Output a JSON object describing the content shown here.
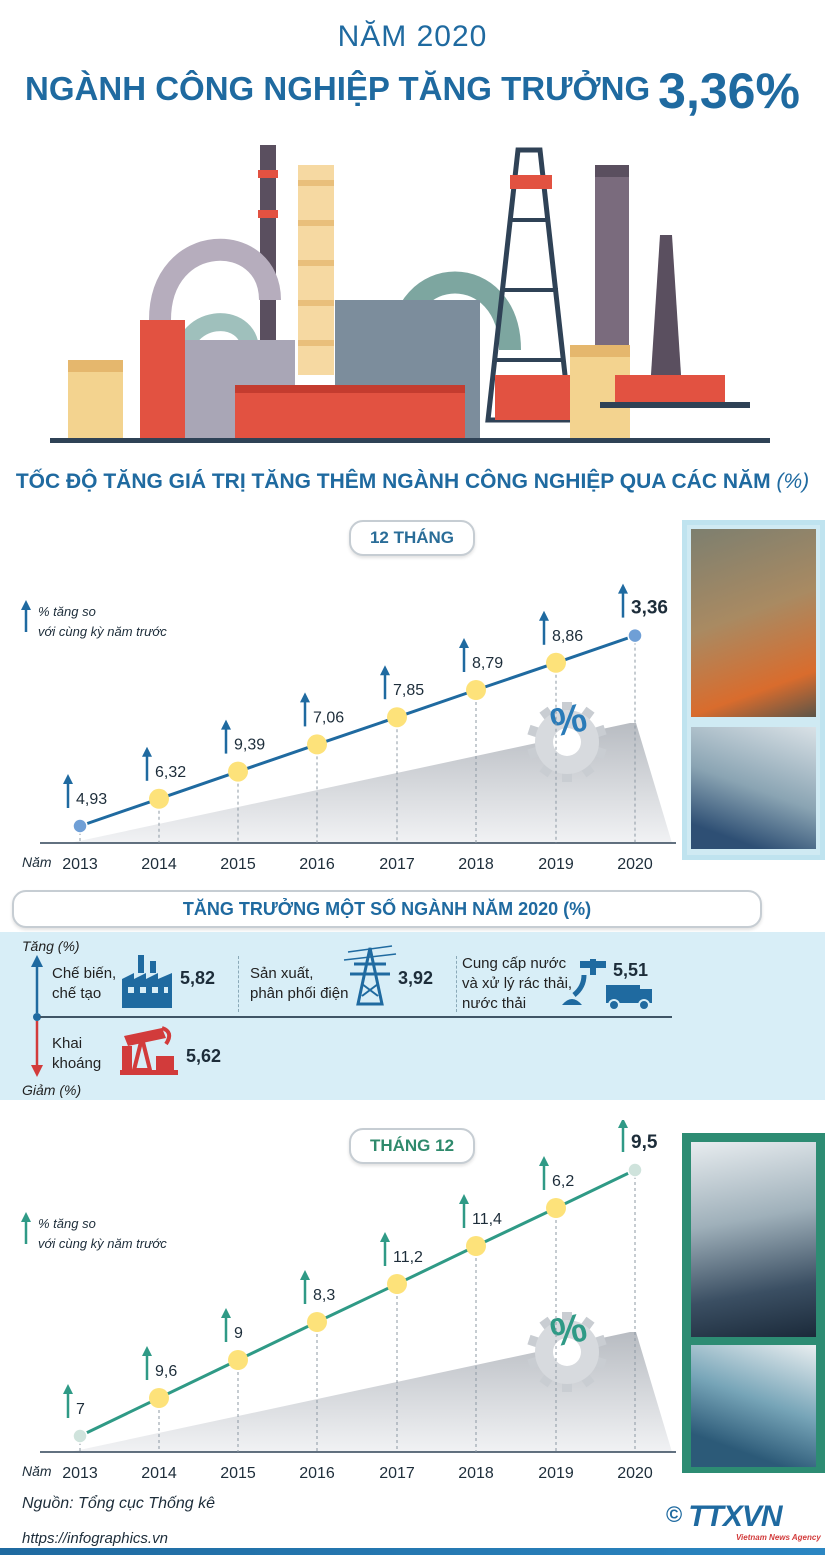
{
  "header": {
    "year_line": "NĂM 2020",
    "title_text": "NGÀNH CÔNG NGHIỆP TĂNG TRƯỞNG",
    "title_value": "3,36%"
  },
  "subtitle": {
    "text": "TỐC ĐỘ TĂNG GIÁ TRỊ TĂNG THÊM NGÀNH CÔNG NGHIỆP QUA CÁC NĂM",
    "unit": "(%)"
  },
  "chart_data": [
    {
      "type": "line",
      "title": "12 THÁNG",
      "legend": "% tăng so với cùng kỳ năm trước",
      "x_prefix": "Năm",
      "x": [
        "2013",
        "2014",
        "2015",
        "2016",
        "2017",
        "2018",
        "2019",
        "2020"
      ],
      "values": [
        4.93,
        6.32,
        9.39,
        7.06,
        7.85,
        8.79,
        8.86,
        3.36
      ],
      "labels": [
        "4,93",
        "6,32",
        "9,39",
        "7,06",
        "7,85",
        "8,79",
        "8,86",
        "3,36"
      ],
      "colors": {
        "line": "#1f6aa0",
        "marker": "#fde27a",
        "end_marker": "#6f9fd6",
        "arrow": "#1f6aa0"
      }
    },
    {
      "type": "line",
      "title": "THÁNG 12",
      "legend": "% tăng so với cùng kỳ năm trước",
      "x_prefix": "Năm",
      "x": [
        "2013",
        "2014",
        "2015",
        "2016",
        "2017",
        "2018",
        "2019",
        "2020"
      ],
      "values": [
        7,
        9.6,
        9,
        8.3,
        11.2,
        11.4,
        6.2,
        9.5
      ],
      "labels": [
        "7",
        "9,6",
        "9",
        "8,3",
        "11,2",
        "11,4",
        "6,2",
        "9,5"
      ],
      "colors": {
        "line": "#2f9a86",
        "marker": "#fde27a",
        "end_marker": "#cfe3dc",
        "arrow": "#2f9a86"
      }
    }
  ],
  "sectors": {
    "title": "TĂNG TRƯỞNG MỘT SỐ NGÀNH NĂM 2020 (%)",
    "increase_label": "Tăng (%)",
    "decrease_label": "Giảm (%)",
    "items": [
      {
        "name_line1": "Chế biến,",
        "name_line2": "chế tạo",
        "value": "5,82",
        "direction": "up",
        "icon": "factory-icon"
      },
      {
        "name_line1": "Sản xuất,",
        "name_line2": "phân phối điện",
        "value": "3,92",
        "direction": "up",
        "icon": "power-pylon-icon"
      },
      {
        "name_line1": "Cung cấp nước",
        "name_line2": "và xử lý rác thải,",
        "name_line3": "nước thải",
        "value": "5,51",
        "direction": "up",
        "icon": "water-waste-icon"
      },
      {
        "name_line1": "Khai",
        "name_line2": "khoáng",
        "value": "5,62",
        "direction": "down",
        "icon": "oil-pump-icon"
      }
    ]
  },
  "footer": {
    "source": "Nguồn: Tổng cục Thống kê",
    "url": "https://infographics.vn",
    "copyright": "©",
    "brand": "TTXVN",
    "brand_sub": "Vietnam News Agency"
  }
}
